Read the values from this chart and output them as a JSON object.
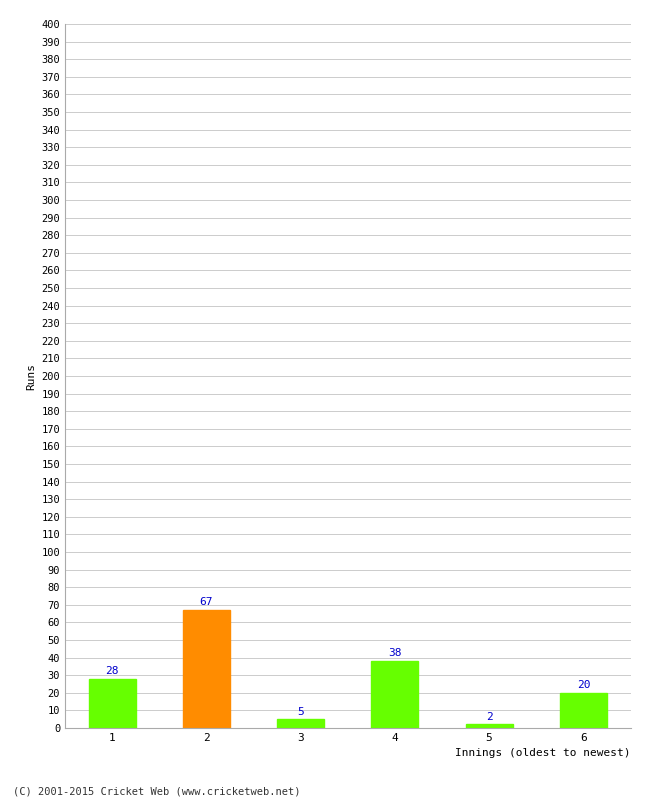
{
  "categories": [
    "1",
    "2",
    "3",
    "4",
    "5",
    "6"
  ],
  "values": [
    28,
    67,
    5,
    38,
    2,
    20
  ],
  "bar_colors": [
    "#66ff00",
    "#ff8c00",
    "#66ff00",
    "#66ff00",
    "#66ff00",
    "#66ff00"
  ],
  "ylabel": "Runs",
  "xlabel": "Innings (oldest to newest)",
  "ylim": [
    0,
    400
  ],
  "ytick_step": 10,
  "label_color": "#0000cc",
  "background_color": "#ffffff",
  "grid_color": "#cccccc",
  "footer": "(C) 2001-2015 Cricket Web (www.cricketweb.net)"
}
